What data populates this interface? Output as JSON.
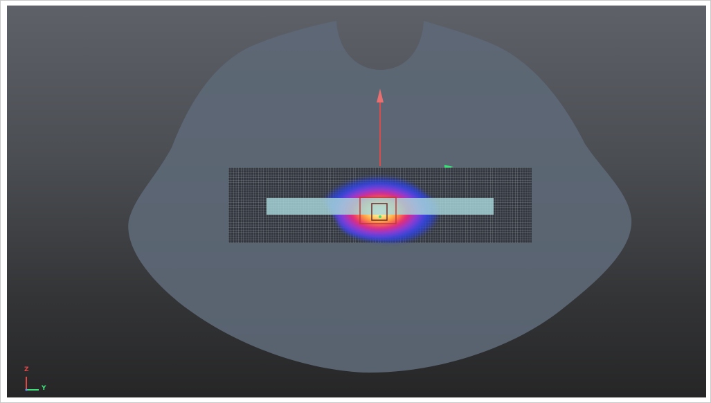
{
  "viewer": {
    "orientation": {
      "vertical_axis_label": "Z",
      "horizontal_axis_label": "Y",
      "vertical_axis_color": "#e04848",
      "horizontal_axis_color": "#3ee07a"
    }
  },
  "colors": {
    "background_top": "#5e6168",
    "background_bottom": "#262627",
    "body_contour": "#5d6876",
    "dose_grid_line": "#d4d8dc",
    "applicator": "#a7d6da",
    "beam_arrow": "#d94c4c",
    "source_marker": "#c0393b",
    "dose_colormap": [
      "#2a3fd9",
      "#6b3fe0",
      "#e0237a",
      "#ff6a2a",
      "#ffd24a",
      "#fff8d0"
    ]
  }
}
